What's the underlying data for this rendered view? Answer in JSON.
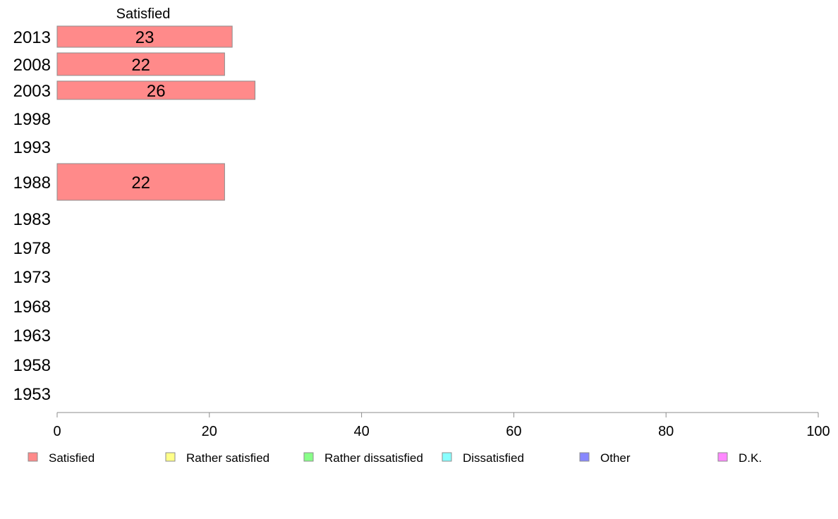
{
  "chart_data": {
    "type": "bar",
    "orientation": "horizontal",
    "stacked": true,
    "series_header": "Satisfied",
    "categories": [
      "2013",
      "2008",
      "2003",
      "1998",
      "1993",
      "1988",
      "1983",
      "1978",
      "1973",
      "1968",
      "1963",
      "1958",
      "1953"
    ],
    "series": [
      {
        "name": "Satisfied",
        "color": "#ff8a8a",
        "values": [
          23,
          22,
          26,
          null,
          null,
          22,
          null,
          null,
          null,
          null,
          null,
          null,
          null
        ]
      },
      {
        "name": "Rather satisfied",
        "color": "#ffff88",
        "values": [
          null,
          null,
          null,
          null,
          null,
          null,
          null,
          null,
          null,
          null,
          null,
          null,
          null
        ]
      },
      {
        "name": "Rather dissatisfied",
        "color": "#88ff88",
        "values": [
          null,
          null,
          null,
          null,
          null,
          null,
          null,
          null,
          null,
          null,
          null,
          null,
          null
        ]
      },
      {
        "name": "Dissatisfied",
        "color": "#88ffff",
        "values": [
          null,
          null,
          null,
          null,
          null,
          null,
          null,
          null,
          null,
          null,
          null,
          null,
          null
        ]
      },
      {
        "name": "Other",
        "color": "#8888ff",
        "values": [
          null,
          null,
          null,
          null,
          null,
          null,
          null,
          null,
          null,
          null,
          null,
          null,
          null
        ]
      },
      {
        "name": "D.K.",
        "color": "#ff88ff",
        "values": [
          null,
          null,
          null,
          null,
          null,
          null,
          null,
          null,
          null,
          null,
          null,
          null,
          null
        ]
      }
    ],
    "xlim": [
      0,
      100
    ],
    "xticks": [
      0,
      20,
      40,
      60,
      80,
      100
    ],
    "grid": false,
    "legend_position": "bottom"
  }
}
